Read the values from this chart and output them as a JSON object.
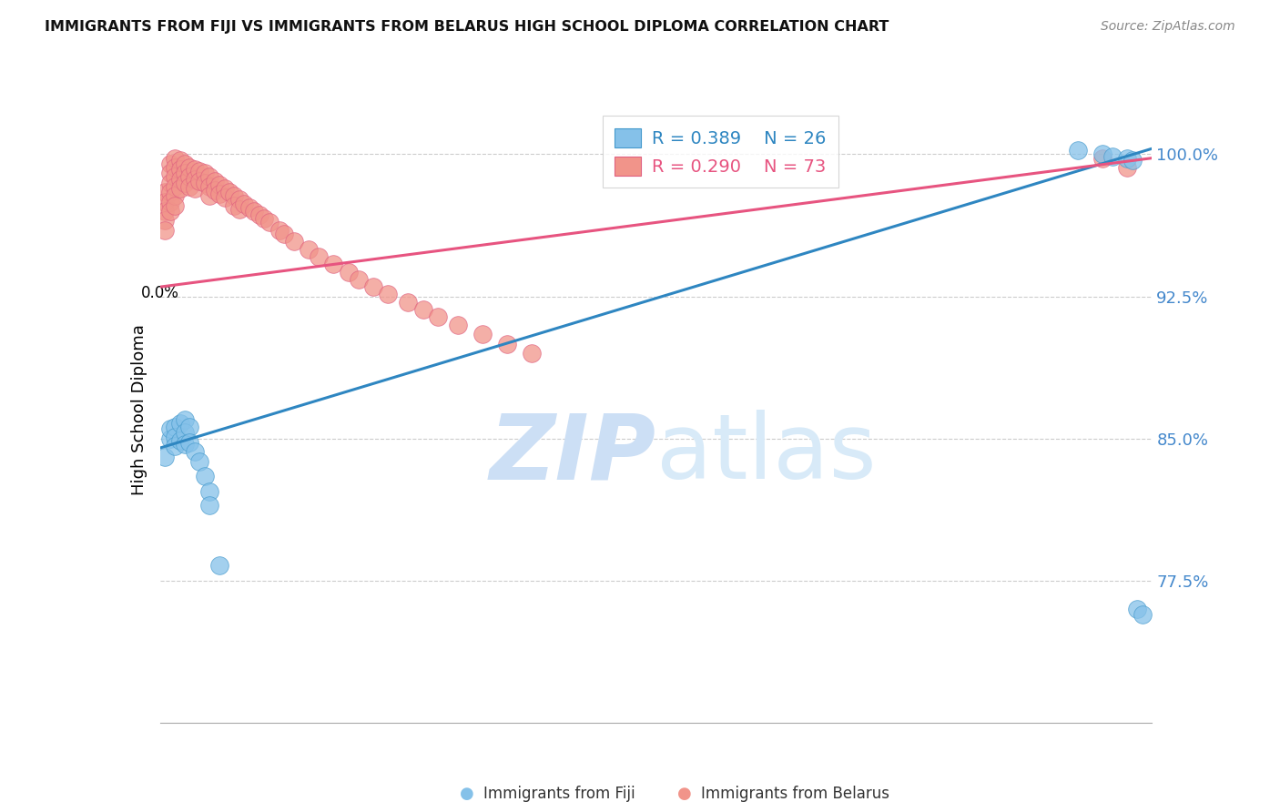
{
  "title": "IMMIGRANTS FROM FIJI VS IMMIGRANTS FROM BELARUS HIGH SCHOOL DIPLOMA CORRELATION CHART",
  "source": "Source: ZipAtlas.com",
  "ylabel": "High School Diploma",
  "ytick_labels": [
    "100.0%",
    "92.5%",
    "85.0%",
    "77.5%"
  ],
  "ytick_values": [
    1.0,
    0.925,
    0.85,
    0.775
  ],
  "xlim": [
    0.0,
    0.2
  ],
  "ylim": [
    0.7,
    1.03
  ],
  "fiji_color": "#85C1E9",
  "belarus_color": "#F1948A",
  "fiji_R": 0.389,
  "fiji_N": 26,
  "belarus_R": 0.29,
  "belarus_N": 73,
  "fiji_line_color": "#2E86C1",
  "belarus_line_color": "#E75480",
  "legend_fiji_label": "Immigrants from Fiji",
  "legend_belarus_label": "Immigrants from Belarus",
  "fiji_line_x0": 0.0,
  "fiji_line_y0": 0.845,
  "fiji_line_x1": 0.2,
  "fiji_line_y1": 1.003,
  "belarus_line_x0": 0.0,
  "belarus_line_y0": 0.93,
  "belarus_line_x1": 0.2,
  "belarus_line_y1": 0.998,
  "fiji_x": [
    0.001,
    0.002,
    0.002,
    0.003,
    0.003,
    0.003,
    0.004,
    0.004,
    0.005,
    0.005,
    0.005,
    0.006,
    0.006,
    0.007,
    0.008,
    0.009,
    0.01,
    0.01,
    0.012,
    0.185,
    0.19,
    0.192,
    0.195,
    0.196,
    0.197,
    0.198
  ],
  "fiji_y": [
    0.84,
    0.85,
    0.855,
    0.856,
    0.851,
    0.846,
    0.858,
    0.849,
    0.86,
    0.853,
    0.847,
    0.856,
    0.848,
    0.843,
    0.838,
    0.83,
    0.822,
    0.815,
    0.783,
    1.002,
    1.0,
    0.999,
    0.998,
    0.997,
    0.76,
    0.757
  ],
  "belarus_x": [
    0.001,
    0.001,
    0.001,
    0.001,
    0.001,
    0.002,
    0.002,
    0.002,
    0.002,
    0.002,
    0.002,
    0.003,
    0.003,
    0.003,
    0.003,
    0.003,
    0.003,
    0.004,
    0.004,
    0.004,
    0.004,
    0.005,
    0.005,
    0.005,
    0.006,
    0.006,
    0.006,
    0.007,
    0.007,
    0.007,
    0.008,
    0.008,
    0.009,
    0.009,
    0.01,
    0.01,
    0.01,
    0.011,
    0.011,
    0.012,
    0.012,
    0.013,
    0.013,
    0.014,
    0.015,
    0.015,
    0.016,
    0.016,
    0.017,
    0.018,
    0.019,
    0.02,
    0.021,
    0.022,
    0.024,
    0.025,
    0.027,
    0.03,
    0.032,
    0.035,
    0.038,
    0.04,
    0.043,
    0.046,
    0.05,
    0.053,
    0.056,
    0.06,
    0.065,
    0.07,
    0.075,
    0.19,
    0.195
  ],
  "belarus_y": [
    0.98,
    0.975,
    0.97,
    0.965,
    0.96,
    0.995,
    0.99,
    0.985,
    0.98,
    0.975,
    0.97,
    0.998,
    0.993,
    0.988,
    0.983,
    0.978,
    0.973,
    0.997,
    0.992,
    0.987,
    0.982,
    0.995,
    0.99,
    0.985,
    0.993,
    0.988,
    0.983,
    0.992,
    0.987,
    0.982,
    0.991,
    0.986,
    0.99,
    0.985,
    0.988,
    0.983,
    0.978,
    0.986,
    0.981,
    0.984,
    0.979,
    0.982,
    0.977,
    0.98,
    0.978,
    0.973,
    0.976,
    0.971,
    0.974,
    0.972,
    0.97,
    0.968,
    0.966,
    0.964,
    0.96,
    0.958,
    0.954,
    0.95,
    0.946,
    0.942,
    0.938,
    0.934,
    0.93,
    0.926,
    0.922,
    0.918,
    0.914,
    0.91,
    0.905,
    0.9,
    0.895,
    0.998,
    0.993
  ]
}
